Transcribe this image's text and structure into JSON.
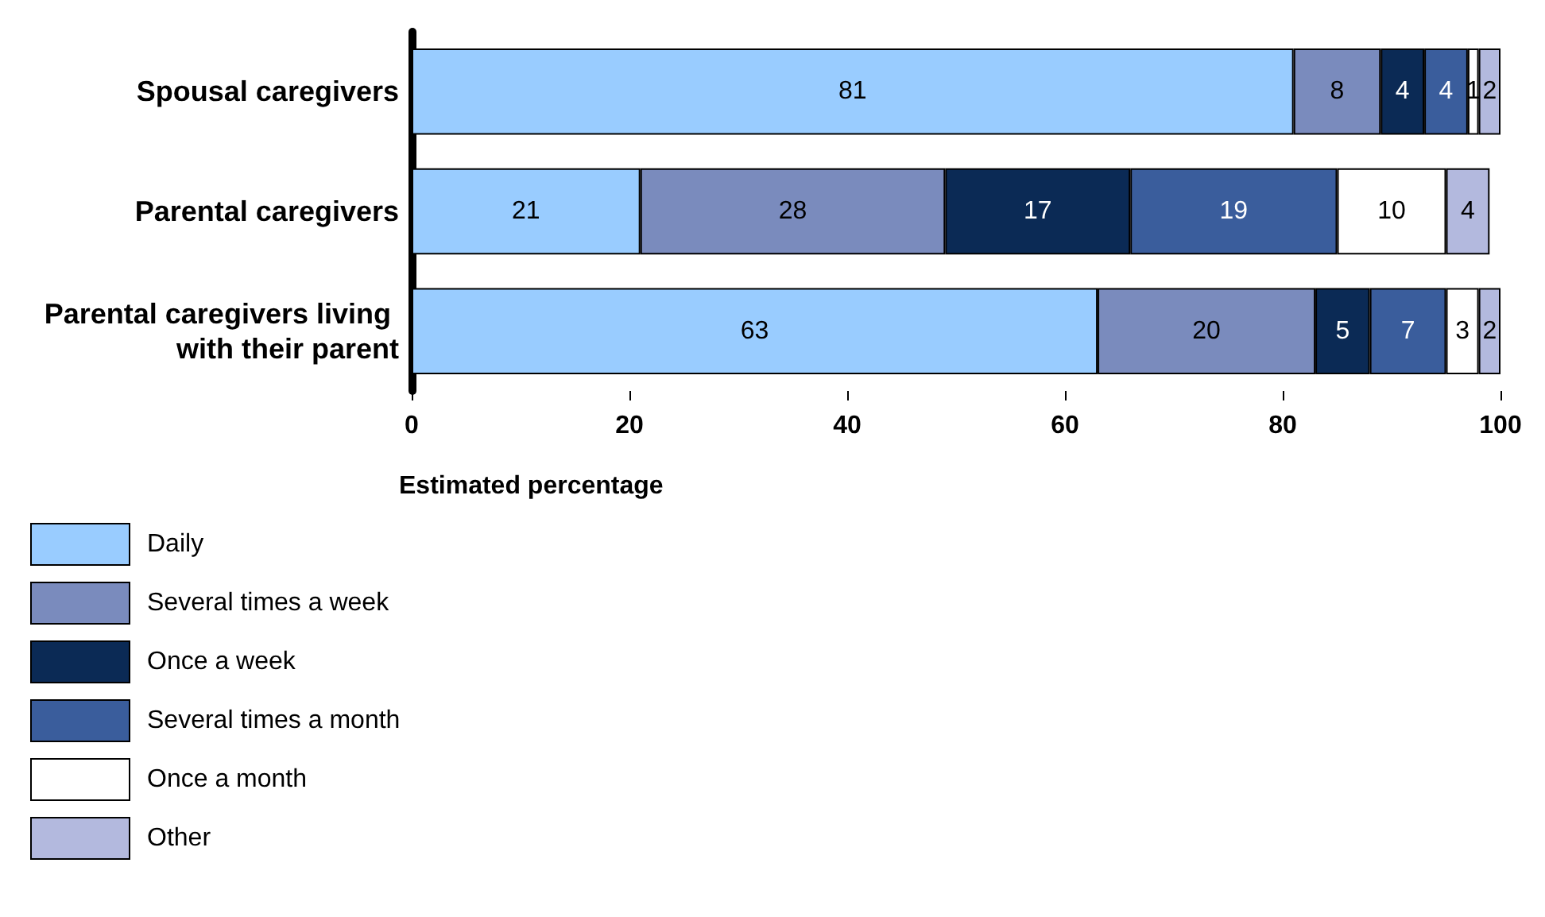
{
  "chart_data": {
    "type": "bar",
    "orientation": "horizontal",
    "stacked": true,
    "xlabel": "Estimated percentage",
    "categories": [
      "Spousal caregivers",
      "Parental caregivers",
      "Parental caregivers living with their parent"
    ],
    "series": [
      {
        "name": "Daily",
        "color": "#99ccff",
        "values": [
          81,
          21,
          63
        ]
      },
      {
        "name": "Several times a week",
        "color": "#7a8bbd",
        "values": [
          8,
          28,
          20
        ]
      },
      {
        "name": "Once a week",
        "color": "#0b2a55",
        "values": [
          4,
          17,
          5
        ]
      },
      {
        "name": "Several times a month",
        "color": "#3a5d9c",
        "values": [
          4,
          19,
          7
        ]
      },
      {
        "name": "Once a month",
        "color": "#ffffff",
        "values": [
          1,
          10,
          3
        ]
      },
      {
        "name": "Other",
        "color": "#b3b9de",
        "values": [
          2,
          4,
          2
        ]
      }
    ],
    "xlim": [
      0,
      100
    ],
    "xticks": [
      0,
      20,
      40,
      60,
      80,
      100
    ],
    "grid": false,
    "legend": "bottom left",
    "data_labels": true
  }
}
